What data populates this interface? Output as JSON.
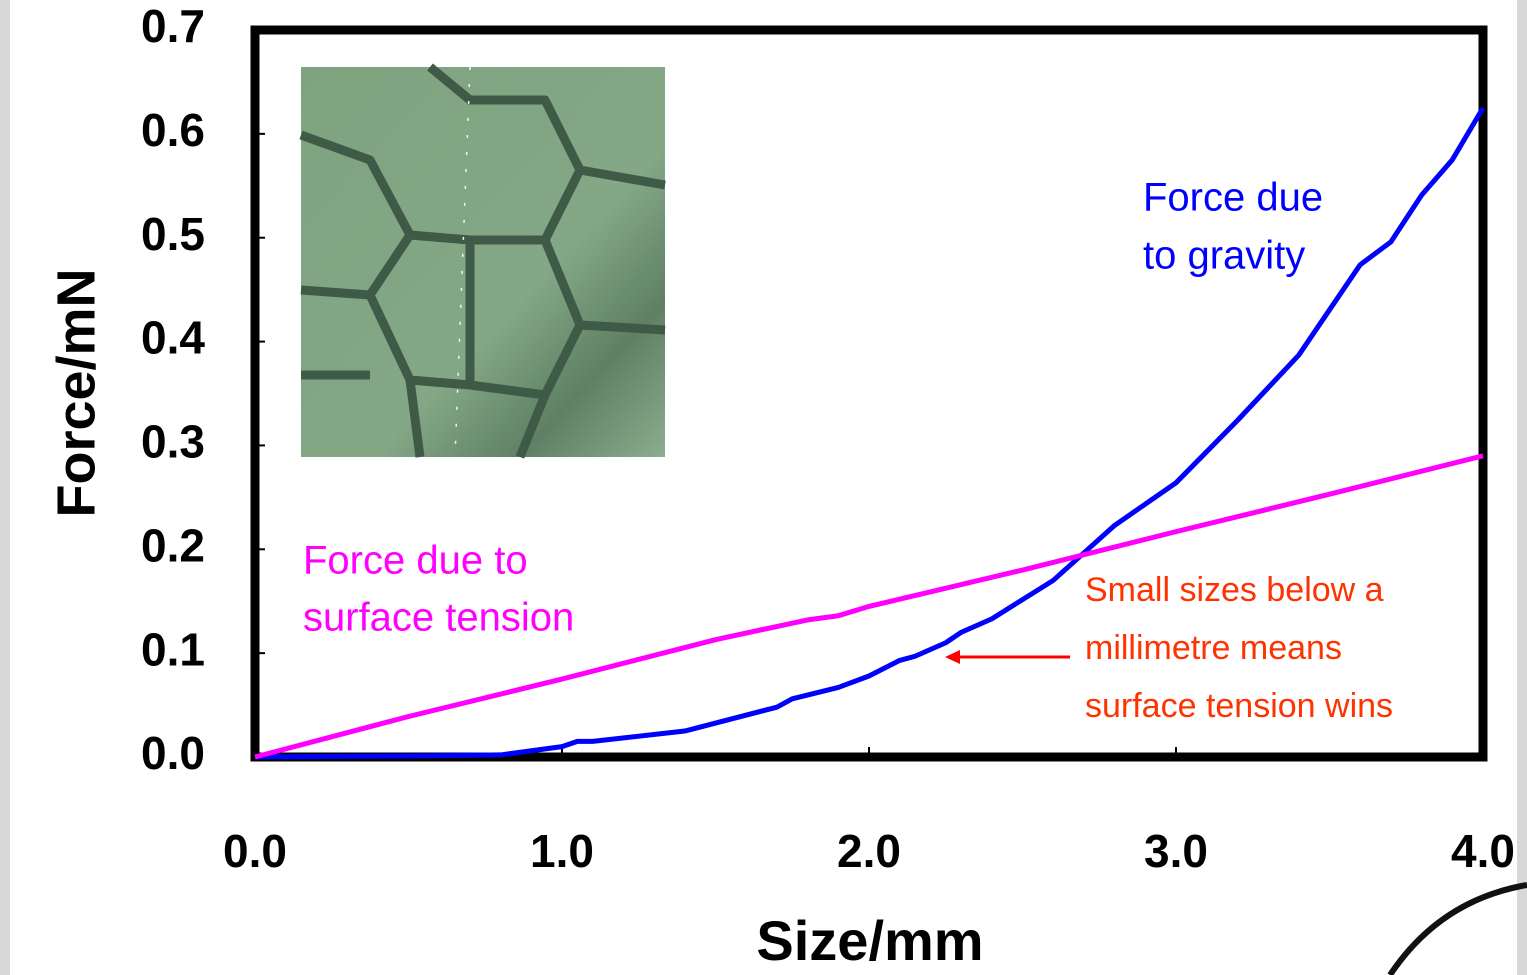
{
  "chart_data": {
    "type": "line",
    "xlabel": "Size/mm",
    "ylabel": "Force/mN",
    "xlim": [
      0,
      4
    ],
    "ylim": [
      0,
      0.7
    ],
    "xticks": [
      {
        "value": 0,
        "label": "0.0"
      },
      {
        "value": 1,
        "label": "1.0"
      },
      {
        "value": 2,
        "label": "2.0"
      },
      {
        "value": 3,
        "label": "3.0"
      },
      {
        "value": 4,
        "label": "4.0"
      }
    ],
    "yticks": [
      {
        "value": 0,
        "label": "0.0"
      },
      0.1,
      0.2,
      0.3,
      0.4,
      0.5,
      0.6,
      0.7
    ],
    "series": [
      {
        "color": "#0000ff",
        "x": [
          0,
          0.5,
          0.8,
          1.0,
          1.05,
          1.1,
          1.4,
          1.7,
          1.75,
          1.9,
          2.0,
          2.1,
          2.15,
          2.25,
          2.3,
          2.4,
          2.6,
          2.8,
          3.0,
          3.2,
          3.4,
          3.6,
          3.7,
          3.8,
          3.9,
          4.0
        ],
        "values": [
          0,
          0.001,
          0.002,
          0.01,
          0.015,
          0.015,
          0.025,
          0.048,
          0.056,
          0.067,
          0.078,
          0.093,
          0.097,
          0.11,
          0.12,
          0.133,
          0.17,
          0.223,
          0.264,
          0.324,
          0.387,
          0.474,
          0.496,
          0.541,
          0.575,
          0.625
        ]
      },
      {
        "color": "#ff00ff",
        "x": [
          0,
          0.5,
          1.0,
          1.5,
          1.8,
          1.9,
          2.0,
          2.5,
          3.0,
          3.5,
          4.0
        ],
        "values": [
          0,
          0.039,
          0.075,
          0.113,
          0.132,
          0.136,
          0.145,
          0.18,
          0.217,
          0.253,
          0.29
        ]
      }
    ],
    "annotations": [
      {
        "lines": [
          "Force due",
          "to gravity"
        ],
        "color": "#0000ff"
      },
      {
        "lines": [
          "Force due to",
          "surface tension"
        ],
        "color": "#ff00ff"
      },
      {
        "lines": [
          "Small sizes below a",
          "millimetre means",
          "surface tension wins"
        ],
        "color": "#ff3300"
      }
    ]
  }
}
